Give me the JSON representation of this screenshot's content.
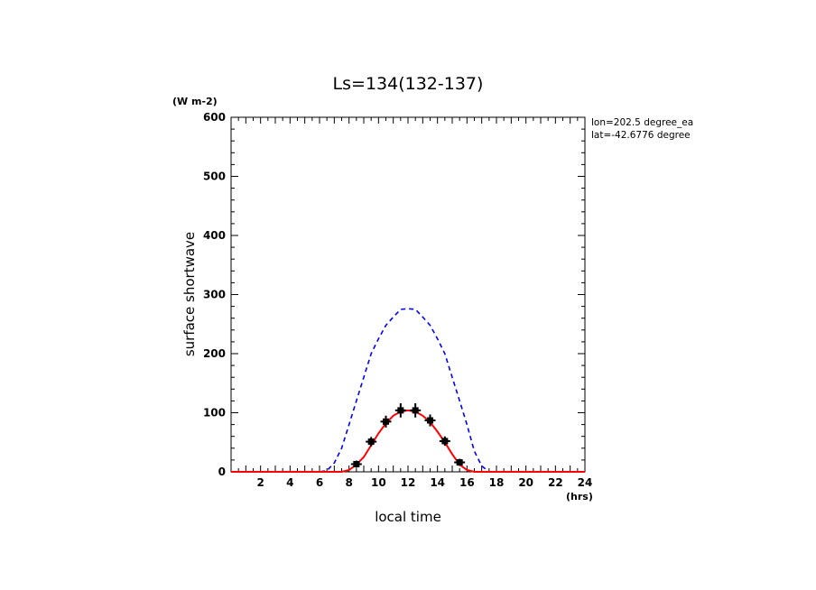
{
  "chart_data": {
    "type": "line",
    "title": "Ls=134(132-137)",
    "xlabel": "local time",
    "ylabel": "surface shortwave",
    "x_unit": "(hrs)",
    "y_unit": "(W m-2)",
    "annotations": [
      "lon=202.5 degree_ea",
      "lat=-42.6776 degree"
    ],
    "xlim": [
      0,
      24
    ],
    "ylim": [
      0,
      600
    ],
    "x_ticks": [
      2,
      4,
      6,
      8,
      10,
      12,
      14,
      16,
      18,
      20,
      22,
      24
    ],
    "y_ticks": [
      0,
      100,
      200,
      300,
      400,
      500,
      600
    ],
    "grid": false,
    "series": [
      {
        "style": "dashed",
        "color": "#0000ff",
        "x": [
          0,
          6,
          6.5,
          7,
          7.5,
          8,
          8.5,
          9,
          9.5,
          10,
          10.5,
          11,
          11.5,
          12,
          12.5,
          13,
          13.5,
          14,
          14.5,
          15,
          15.5,
          16,
          16.5,
          17,
          17.5,
          24
        ],
        "values": [
          0,
          0,
          2,
          15,
          40,
          80,
          120,
          160,
          200,
          225,
          248,
          262,
          275,
          276,
          275,
          262,
          248,
          225,
          200,
          160,
          120,
          80,
          35,
          10,
          0,
          0
        ]
      },
      {
        "style": "solid",
        "color": "#ff0000",
        "x": [
          0,
          7.5,
          8,
          8.5,
          9,
          9.5,
          10,
          10.5,
          11,
          11.5,
          12,
          12.5,
          13,
          13.5,
          14,
          14.5,
          15,
          15.5,
          16,
          16.5,
          24
        ],
        "values": [
          0,
          0,
          3,
          12,
          25,
          45,
          65,
          82,
          95,
          102,
          104,
          102,
          95,
          84,
          68,
          50,
          30,
          12,
          3,
          0,
          0
        ]
      },
      {
        "style": "markers",
        "color": "#000000",
        "x": [
          8.5,
          9.5,
          10.5,
          11.5,
          12.5,
          13.5,
          14.5,
          15.5
        ],
        "values": [
          13,
          51,
          85,
          104,
          104,
          87,
          52,
          16
        ],
        "errors": [
          6,
          8,
          10,
          12,
          12,
          10,
          8,
          6
        ]
      }
    ]
  }
}
